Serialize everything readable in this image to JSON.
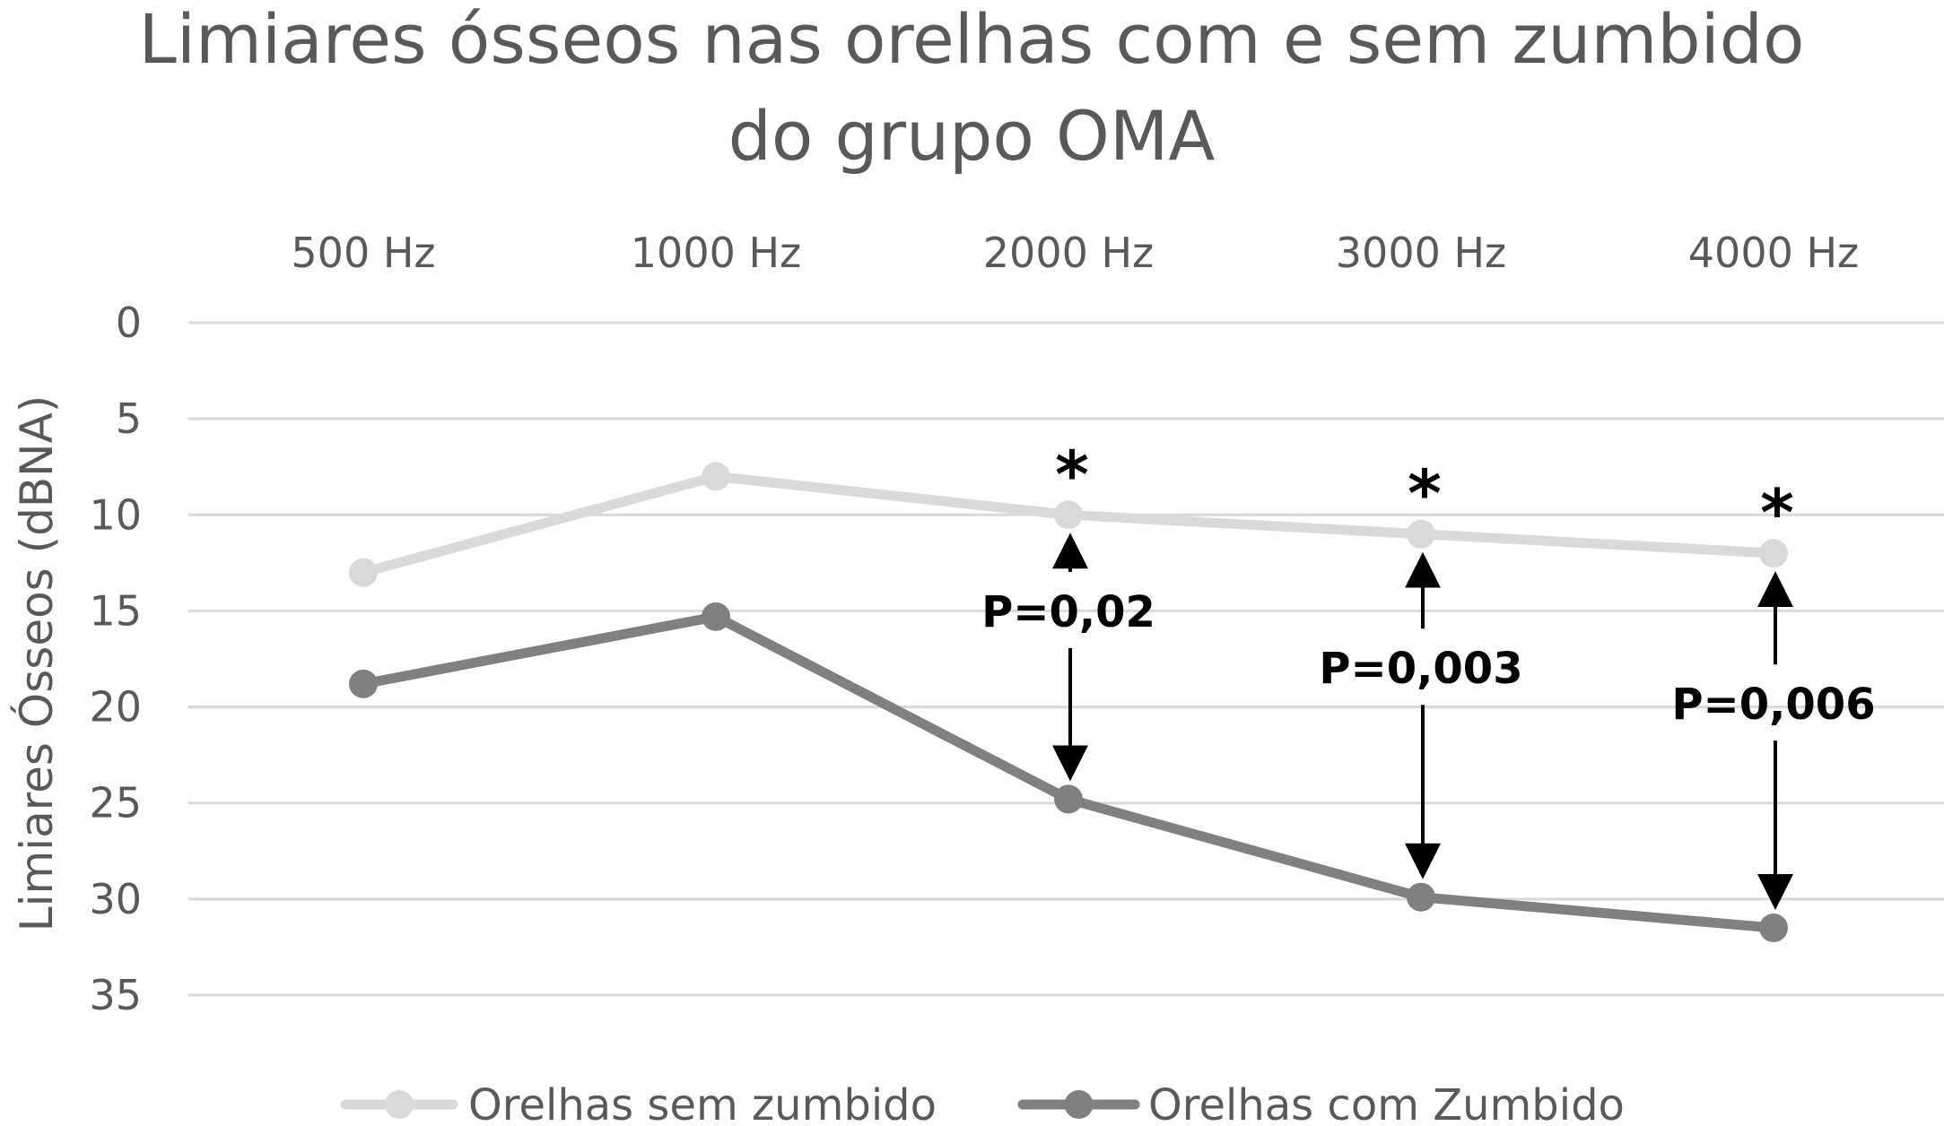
{
  "chart_data": {
    "type": "line",
    "title_line1": "Limiares ósseos nas orelhas com e sem zumbido",
    "title_line2": "do grupo OMA",
    "xlabel": "",
    "ylabel": "Limiares Ósseos (dBNA)",
    "categories": [
      "500 Hz",
      "1000 Hz",
      "2000 Hz",
      "3000 Hz",
      "4000 Hz"
    ],
    "x_axis_position": "top",
    "y_inverted": true,
    "ylim": [
      0,
      35
    ],
    "yticks": [
      "0",
      "5",
      "10",
      "15",
      "20",
      "25",
      "30",
      "35"
    ],
    "ytick_values": [
      0,
      5,
      10,
      15,
      20,
      25,
      30,
      35
    ],
    "grid": true,
    "legend_position": "bottom",
    "series": [
      {
        "name": "Orelhas sem zumbido",
        "values": [
          13,
          8,
          10,
          11,
          12
        ],
        "color": "#d9d9d9"
      },
      {
        "name": "Orelhas com Zumbido",
        "values": [
          18.8,
          15.3,
          24.8,
          29.9,
          31.5
        ],
        "color": "#808080"
      }
    ],
    "annotations": [
      {
        "category_index": 2,
        "marker": "*",
        "label": "P=0,02"
      },
      {
        "category_index": 3,
        "marker": "*",
        "label": "P=0,003"
      },
      {
        "category_index": 4,
        "marker": "*",
        "label": "P=0,006"
      }
    ]
  }
}
